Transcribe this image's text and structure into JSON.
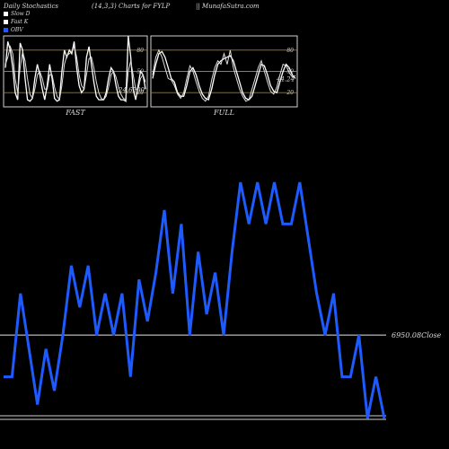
{
  "header": {
    "title": "Daily Stochastics",
    "params": "(14,3,3) Charts for FYLP",
    "site": "|| MunafaSutra.com"
  },
  "legend": [
    {
      "label": "Slow  D",
      "color": "#ffffff"
    },
    {
      "label": "Fast K",
      "color": "#ffffff"
    },
    {
      "label": "OBV",
      "color": "#1e5bff"
    }
  ],
  "chart_data": [
    {
      "type": "line",
      "title": "FAST",
      "ylim": [
        0,
        100
      ],
      "y_ticks": [
        "80",
        "50",
        "20"
      ],
      "level_lines": [
        80,
        50,
        20
      ],
      "last_value_label": "24.6500",
      "series": [
        {
          "values": [
            55,
            92,
            80,
            55,
            20,
            10,
            90,
            80,
            40,
            10,
            8,
            12,
            40,
            60,
            45,
            25,
            10,
            30,
            60,
            40,
            12,
            8,
            10,
            50,
            80,
            70,
            80,
            75,
            92,
            55,
            30,
            20,
            25,
            70,
            85,
            60,
            35,
            15,
            10,
            10,
            10,
            20,
            40,
            55,
            50,
            30,
            15,
            10,
            10,
            8,
            100,
            70,
            25,
            10,
            30,
            50,
            45,
            25
          ]
        },
        {
          "values": [
            60,
            70,
            85,
            75,
            40,
            20,
            55,
            78,
            65,
            40,
            18,
            12,
            25,
            45,
            50,
            40,
            25,
            25,
            45,
            45,
            28,
            15,
            10,
            30,
            60,
            72,
            75,
            78,
            85,
            70,
            45,
            30,
            25,
            45,
            68,
            70,
            55,
            35,
            20,
            12,
            10,
            15,
            28,
            45,
            50,
            42,
            28,
            18,
            12,
            10,
            50,
            65,
            45,
            25,
            25,
            40,
            45,
            35
          ]
        }
      ]
    },
    {
      "type": "line",
      "title": "FULL",
      "ylim": [
        0,
        100
      ],
      "y_ticks": [
        "80",
        "50",
        "20"
      ],
      "level_lines": [
        80,
        50,
        20
      ],
      "last_value_label": "44.24",
      "series": [
        {
          "values": [
            40,
            60,
            75,
            78,
            70,
            55,
            40,
            35,
            20,
            15,
            15,
            30,
            50,
            55,
            45,
            30,
            18,
            12,
            10,
            25,
            45,
            60,
            65,
            68,
            70,
            72,
            65,
            50,
            35,
            20,
            12,
            10,
            15,
            30,
            45,
            60,
            58,
            45,
            30,
            22,
            20,
            35,
            50,
            60,
            55,
            45,
            40
          ]
        },
        {
          "values": [
            45,
            70,
            80,
            70,
            55,
            40,
            38,
            30,
            18,
            12,
            20,
            40,
            58,
            50,
            35,
            22,
            12,
            8,
            15,
            38,
            55,
            65,
            60,
            75,
            60,
            80,
            55,
            40,
            25,
            15,
            8,
            10,
            25,
            40,
            55,
            65,
            50,
            35,
            22,
            18,
            28,
            45,
            60,
            58,
            48,
            42,
            44
          ]
        }
      ]
    },
    {
      "type": "line",
      "title": "OBV",
      "series": [
        {
          "name": "OBV",
          "values": [
            6000,
            6000,
            12000,
            8000,
            4000,
            8000,
            5000,
            9000,
            14000,
            11000,
            14000,
            9000,
            12000,
            9000,
            12000,
            6000,
            13000,
            10000,
            13500,
            18000,
            12000,
            17000,
            9000,
            15000,
            10500,
            13500,
            9000,
            15000,
            20000,
            17000,
            20000,
            17000,
            20000,
            17000,
            17000,
            20000,
            16000,
            12000,
            9000,
            12000,
            6000,
            6000,
            9000,
            3000,
            6000,
            3000
          ]
        }
      ],
      "ylim": [
        3000,
        20000
      ],
      "reference_line": 9000,
      "reference_label": "6950.08Close"
    }
  ]
}
